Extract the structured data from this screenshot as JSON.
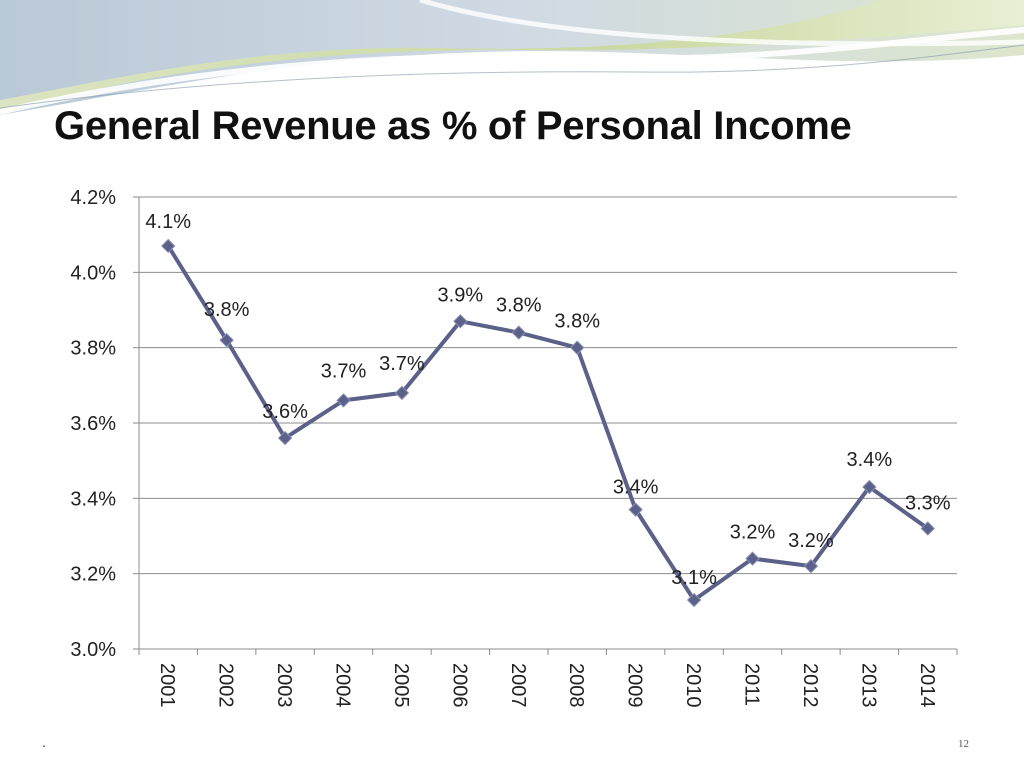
{
  "slide": {
    "title": "General Revenue as % of Personal Income",
    "page_number": "12",
    "footer_mark": "."
  },
  "colors": {
    "line": "#5b6189",
    "marker": "#5b6189",
    "grid": "#8c8c8c",
    "decor_green": "#c9d89a",
    "decor_blue": "#b7cbd8"
  },
  "chart_data": {
    "type": "line",
    "title": "General Revenue as % of Personal Income",
    "xlabel": "",
    "ylabel": "",
    "categories": [
      "2001",
      "2002",
      "2003",
      "2004",
      "2005",
      "2006",
      "2007",
      "2008",
      "2009",
      "2010",
      "2011",
      "2012",
      "2013",
      "2014"
    ],
    "series": [
      {
        "values": [
          4.07,
          3.82,
          3.56,
          3.66,
          3.68,
          3.87,
          3.84,
          3.8,
          3.37,
          3.13,
          3.24,
          3.22,
          3.43,
          3.32
        ],
        "labels": [
          "4.1%",
          "3.8%",
          "3.6%",
          "3.7%",
          "3.7%",
          "3.9%",
          "3.8%",
          "3.8%",
          "3.4%",
          "3.1%",
          "3.2%",
          "3.2%",
          "3.4%",
          "3.3%"
        ]
      }
    ],
    "ylim": [
      3.0,
      4.2
    ],
    "yticks": [
      3.0,
      3.2,
      3.4,
      3.6,
      3.8,
      4.0,
      4.2
    ],
    "ytick_labels": [
      "3.0%",
      "3.2%",
      "3.4%",
      "3.6%",
      "3.8%",
      "4.0%",
      "4.2%"
    ],
    "grid": true,
    "legend": "none"
  }
}
